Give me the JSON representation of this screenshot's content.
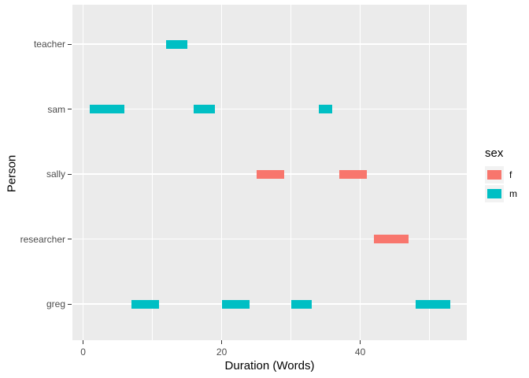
{
  "chart_data": {
    "type": "segment",
    "title": "",
    "xlabel": "Duration (Words)",
    "ylabel": "Person",
    "x_ticks": [
      0,
      20,
      40
    ],
    "x_minor_ticks": [
      10,
      30,
      50
    ],
    "xlim": [
      -1.6,
      55.6
    ],
    "categories_bottom_to_top": [
      "greg",
      "researcher",
      "sally",
      "sam",
      "teacher"
    ],
    "grid": true,
    "legend": {
      "title": "sex",
      "position": "right",
      "entries": [
        {
          "label": "f",
          "color": "#F8766D"
        },
        {
          "label": "m",
          "color": "#00BFC4"
        }
      ]
    },
    "segments": [
      {
        "person": "teacher",
        "start": 12,
        "end": 15,
        "sex": "m"
      },
      {
        "person": "sam",
        "start": 1,
        "end": 6,
        "sex": "m"
      },
      {
        "person": "sam",
        "start": 16,
        "end": 19,
        "sex": "m"
      },
      {
        "person": "sam",
        "start": 34,
        "end": 36,
        "sex": "m"
      },
      {
        "person": "sally",
        "start": 25,
        "end": 29,
        "sex": "f"
      },
      {
        "person": "sally",
        "start": 37,
        "end": 41,
        "sex": "f"
      },
      {
        "person": "researcher",
        "start": 42,
        "end": 47,
        "sex": "f"
      },
      {
        "person": "greg",
        "start": 7,
        "end": 11,
        "sex": "m"
      },
      {
        "person": "greg",
        "start": 20,
        "end": 24,
        "sex": "m"
      },
      {
        "person": "greg",
        "start": 30,
        "end": 33,
        "sex": "m"
      },
      {
        "person": "greg",
        "start": 48,
        "end": 53,
        "sex": "m"
      }
    ],
    "colors": {
      "f": "#F8766D",
      "m": "#00BFC4",
      "panel_background": "#EBEBEB",
      "gridline": "#FFFFFF",
      "tick_label": "#4D4D4D",
      "legend_key_background": "#F2F2F2"
    }
  }
}
